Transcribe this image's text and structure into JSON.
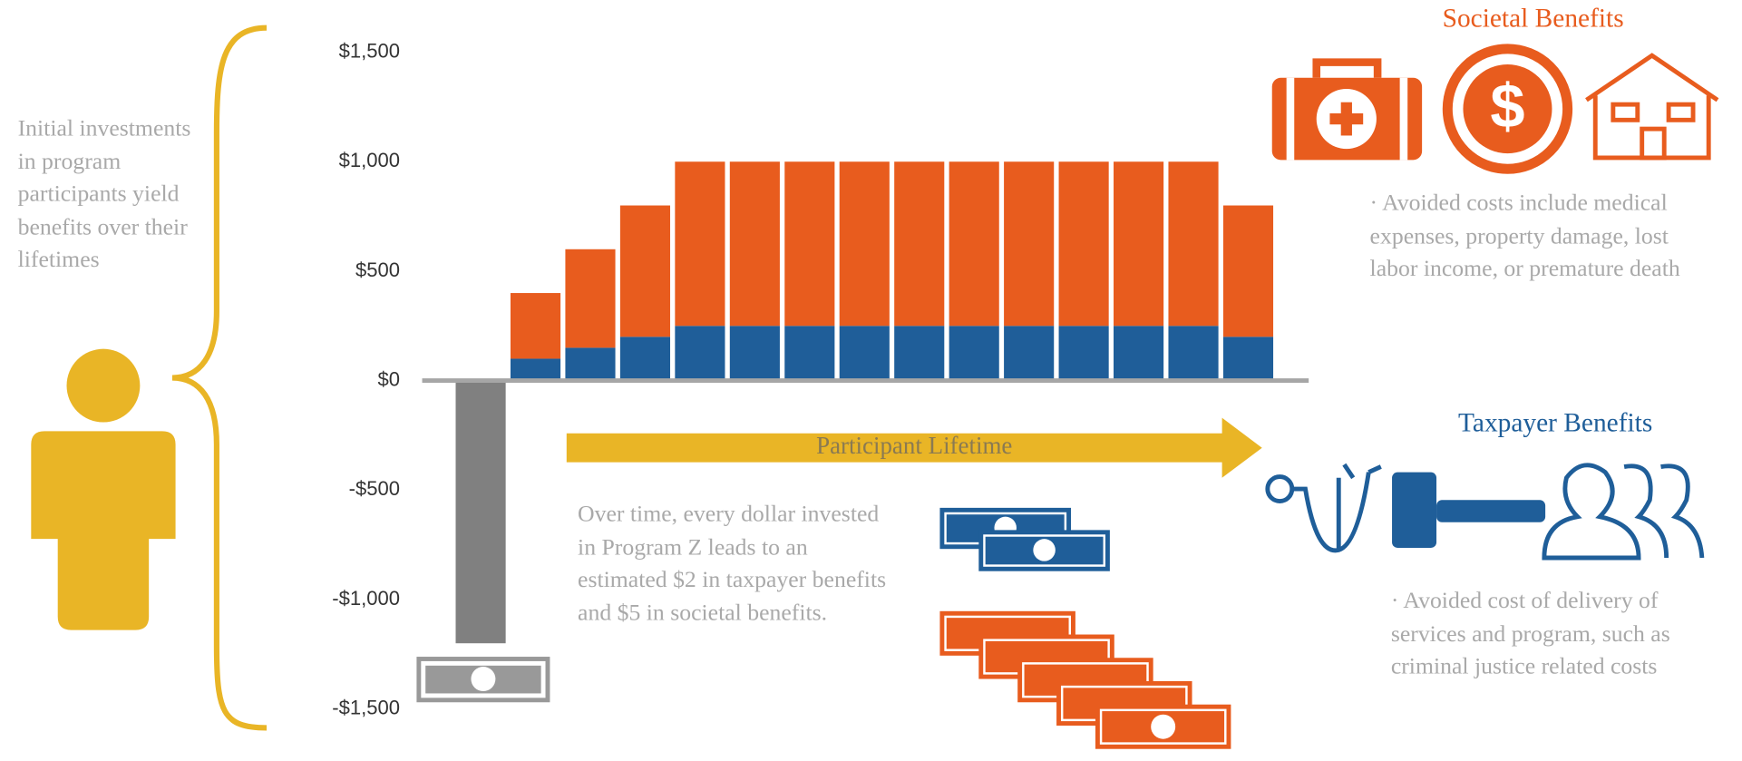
{
  "chart_data": {
    "type": "bar",
    "stacked": true,
    "categories": [
      null,
      null,
      null,
      null,
      null,
      null,
      null,
      null,
      null,
      null,
      null,
      null,
      null,
      null,
      null
    ],
    "series": [
      {
        "color": "#808080",
        "values": [
          -1200,
          null,
          null,
          null,
          null,
          null,
          null,
          null,
          null,
          null,
          null,
          null,
          null,
          null,
          null
        ]
      },
      {
        "color": "#1f5e99",
        "values": [
          null,
          100,
          150,
          200,
          250,
          250,
          250,
          250,
          250,
          250,
          250,
          250,
          250,
          250,
          200
        ]
      },
      {
        "color": "#e85c1e",
        "values": [
          null,
          300,
          450,
          600,
          750,
          750,
          750,
          750,
          750,
          750,
          750,
          750,
          750,
          750,
          600
        ]
      }
    ],
    "ylim": [
      -1500,
      1500
    ],
    "yticks": [
      {
        "value": -1500,
        "label": "-$1,500"
      },
      {
        "value": -1000,
        "label": "-$1,000"
      },
      {
        "value": -500,
        "label": "-$500"
      },
      {
        "value": 0,
        "label": "$0"
      },
      {
        "value": 500,
        "label": "$500"
      },
      {
        "value": 1000,
        "label": "$1,000"
      },
      {
        "value": 1500,
        "label": "$1,500"
      }
    ],
    "grid": false,
    "side_note": "Initial investments in program participants yield benefits over their lifetimes",
    "arrow_label": "Participant Lifetime",
    "note": "Over time, every dollar invested in Program Z leads to an estimated $2 in taxpayer benefits and $5 in societal benefits.",
    "panels": [
      {
        "title": "Societal Benefits",
        "text": "· Avoided costs include medical expenses, property damage, lost labor income, or premature death"
      },
      {
        "title": "Taxpayer Benefits",
        "text": "· Avoided cost of delivery of services and program, such as criminal justice related costs"
      }
    ]
  }
}
